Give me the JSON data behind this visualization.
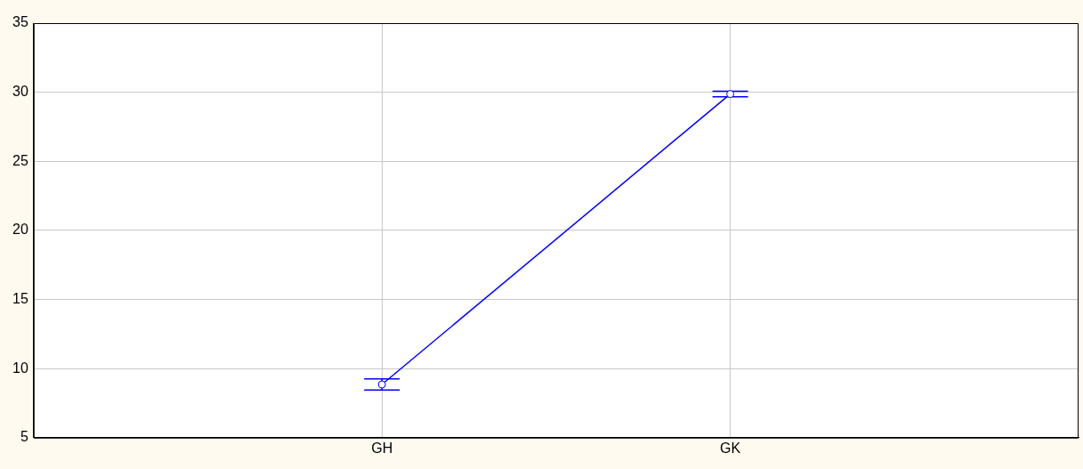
{
  "chart_data": {
    "type": "line",
    "categories": [
      "GH",
      "GK"
    ],
    "series": [
      {
        "color": "#0000ff",
        "values": [
          8.85,
          29.87
        ],
        "errors": [
          0.4,
          0.2
        ]
      }
    ],
    "ylim": [
      5,
      35
    ],
    "yticks": [
      5,
      10,
      15,
      20,
      25,
      30,
      35
    ],
    "grid": true,
    "marker": "circle",
    "line_style": "solid",
    "legend": false
  }
}
